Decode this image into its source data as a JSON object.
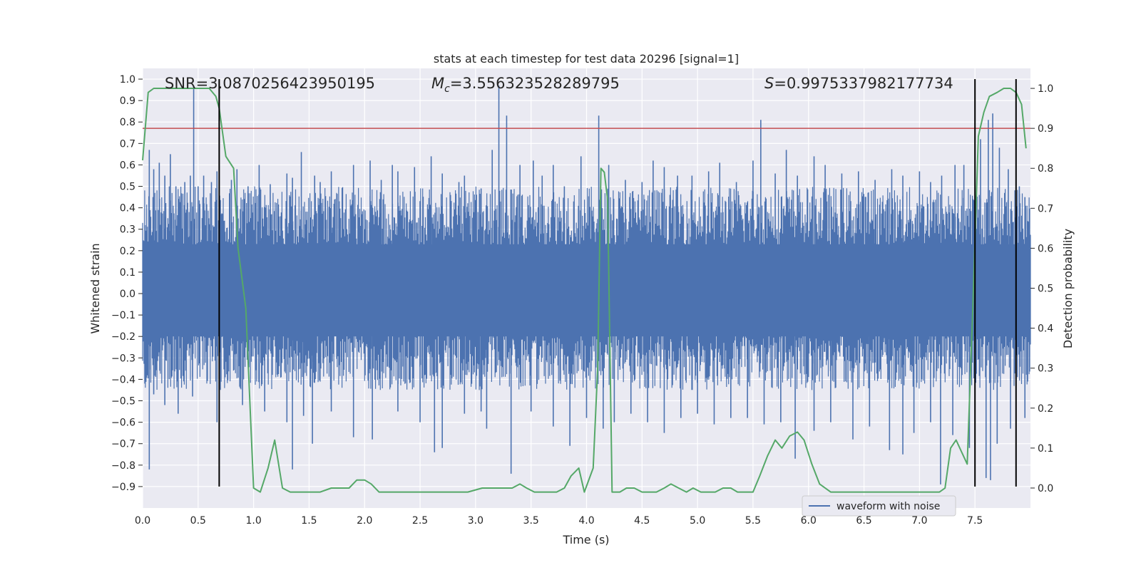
{
  "chart_data": {
    "type": "line",
    "title": "stats at each timestep for test data 20296 [signal=1]",
    "xlabel": "Time (s)",
    "ylabel": "Whitened strain",
    "ylabel_right": "Detection probability",
    "xlim": [
      0.0,
      8.0
    ],
    "ylim": [
      -1.0,
      1.05
    ],
    "ylim_right": [
      -0.05,
      1.05
    ],
    "x_ticks": [
      "0.0",
      "0.5",
      "1.0",
      "1.5",
      "2.0",
      "2.5",
      "3.0",
      "3.5",
      "4.0",
      "4.5",
      "5.0",
      "5.5",
      "6.0",
      "6.5",
      "7.0",
      "7.5"
    ],
    "x_tick_values": [
      0.0,
      0.5,
      1.0,
      1.5,
      2.0,
      2.5,
      3.0,
      3.5,
      4.0,
      4.5,
      5.0,
      5.5,
      6.0,
      6.5,
      7.0,
      7.5
    ],
    "y_ticks": [
      "1.0",
      "0.9",
      "0.8",
      "0.7",
      "0.6",
      "0.5",
      "0.4",
      "0.3",
      "0.2",
      "0.1",
      "0.0",
      "−0.1",
      "−0.2",
      "−0.3",
      "−0.4",
      "−0.5",
      "−0.6",
      "−0.7",
      "−0.8",
      "−0.9"
    ],
    "y_tick_values": [
      1.0,
      0.9,
      0.8,
      0.7,
      0.6,
      0.5,
      0.4,
      0.3,
      0.2,
      0.1,
      0.0,
      -0.1,
      -0.2,
      -0.3,
      -0.4,
      -0.5,
      -0.6,
      -0.7,
      -0.8,
      -0.9
    ],
    "y_right_ticks": [
      "1.0",
      "0.9",
      "0.8",
      "0.7",
      "0.6",
      "0.5",
      "0.4",
      "0.3",
      "0.2",
      "0.1",
      "0.0"
    ],
    "y_right_tick_values": [
      1.0,
      0.9,
      0.8,
      0.7,
      0.6,
      0.5,
      0.4,
      0.3,
      0.2,
      0.1,
      0.0
    ],
    "annotations": {
      "snr": "SNR=3.0870256423950195",
      "mc_symbol": "M",
      "mc_sub": "c",
      "mc_value": "=3.556323528289795",
      "s_symbol": "S",
      "s_value": "=0.9975337982177734"
    },
    "threshold": 0.9,
    "vertical_markers": [
      0.69,
      7.5,
      7.87
    ],
    "waveform": {
      "name": "waveform with noise",
      "envelope_upper": 0.45,
      "envelope_lower": -0.4,
      "spikes": [
        [
          0.06,
          0.67
        ],
        [
          0.1,
          0.58
        ],
        [
          0.15,
          0.61
        ],
        [
          0.2,
          0.55
        ],
        [
          0.25,
          0.65
        ],
        [
          0.3,
          0.5
        ],
        [
          0.38,
          0.52
        ],
        [
          0.43,
          0.55
        ],
        [
          0.46,
          0.97
        ],
        [
          0.5,
          0.5
        ],
        [
          0.55,
          0.55
        ],
        [
          0.62,
          0.52
        ],
        [
          0.67,
          0.57
        ],
        [
          0.8,
          0.53
        ],
        [
          0.85,
          0.58
        ],
        [
          0.95,
          0.5
        ],
        [
          1.05,
          0.6
        ],
        [
          1.15,
          0.51
        ],
        [
          1.3,
          0.56
        ],
        [
          1.35,
          0.54
        ],
        [
          1.43,
          0.66
        ],
        [
          1.55,
          0.55
        ],
        [
          1.6,
          0.52
        ],
        [
          1.7,
          0.57
        ],
        [
          1.8,
          0.48
        ],
        [
          1.9,
          0.6
        ],
        [
          2.05,
          0.62
        ],
        [
          2.15,
          0.53
        ],
        [
          2.25,
          0.6
        ],
        [
          2.3,
          0.57
        ],
        [
          2.45,
          0.59
        ],
        [
          2.6,
          0.64
        ],
        [
          2.7,
          0.56
        ],
        [
          2.85,
          0.52
        ],
        [
          2.9,
          0.55
        ],
        [
          3.05,
          0.49
        ],
        [
          3.15,
          0.67
        ],
        [
          3.21,
          0.97
        ],
        [
          3.28,
          0.83
        ],
        [
          3.4,
          0.6
        ],
        [
          3.52,
          0.62
        ],
        [
          3.6,
          0.55
        ],
        [
          3.7,
          0.6
        ],
        [
          3.8,
          0.5
        ],
        [
          3.95,
          0.64
        ],
        [
          4.11,
          0.83
        ],
        [
          4.2,
          0.6
        ],
        [
          4.35,
          0.53
        ],
        [
          4.5,
          0.52
        ],
        [
          4.6,
          0.62
        ],
        [
          4.7,
          0.59
        ],
        [
          4.82,
          0.55
        ],
        [
          4.95,
          0.55
        ],
        [
          5.1,
          0.57
        ],
        [
          5.2,
          0.61
        ],
        [
          5.35,
          0.52
        ],
        [
          5.5,
          0.62
        ],
        [
          5.57,
          0.81
        ],
        [
          5.7,
          0.56
        ],
        [
          5.8,
          0.67
        ],
        [
          5.9,
          0.55
        ],
        [
          6.05,
          0.64
        ],
        [
          6.15,
          0.6
        ],
        [
          6.3,
          0.56
        ],
        [
          6.45,
          0.57
        ],
        [
          6.6,
          0.53
        ],
        [
          6.75,
          0.58
        ],
        [
          6.85,
          0.55
        ],
        [
          7.0,
          0.57
        ],
        [
          7.1,
          0.52
        ],
        [
          7.2,
          0.55
        ],
        [
          7.32,
          0.6
        ],
        [
          7.4,
          0.6
        ],
        [
          7.55,
          0.72
        ],
        [
          7.62,
          0.81
        ],
        [
          7.66,
          0.84
        ],
        [
          7.72,
          0.68
        ],
        [
          7.8,
          0.58
        ],
        [
          7.9,
          0.5
        ],
        [
          7.95,
          0.45
        ],
        [
          0.06,
          -0.82
        ],
        [
          0.1,
          -0.47
        ],
        [
          0.2,
          -0.52
        ],
        [
          0.32,
          -0.56
        ],
        [
          0.45,
          -0.48
        ],
        [
          0.67,
          -0.6
        ],
        [
          0.9,
          -0.52
        ],
        [
          1.1,
          -0.55
        ],
        [
          1.3,
          -0.6
        ],
        [
          1.35,
          -0.82
        ],
        [
          1.45,
          -0.57
        ],
        [
          1.53,
          -0.7
        ],
        [
          1.7,
          -0.55
        ],
        [
          1.9,
          -0.67
        ],
        [
          2.07,
          -0.68
        ],
        [
          2.3,
          -0.55
        ],
        [
          2.5,
          -0.6
        ],
        [
          2.63,
          -0.74
        ],
        [
          2.7,
          -0.72
        ],
        [
          2.9,
          -0.56
        ],
        [
          3.05,
          -0.55
        ],
        [
          3.1,
          -0.63
        ],
        [
          3.32,
          -0.84
        ],
        [
          3.5,
          -0.55
        ],
        [
          3.7,
          -0.62
        ],
        [
          3.85,
          -0.71
        ],
        [
          4.0,
          -0.58
        ],
        [
          4.15,
          -0.63
        ],
        [
          4.25,
          -0.6
        ],
        [
          4.4,
          -0.56
        ],
        [
          4.55,
          -0.6
        ],
        [
          4.7,
          -0.65
        ],
        [
          4.85,
          -0.58
        ],
        [
          5.0,
          -0.56
        ],
        [
          5.15,
          -0.61
        ],
        [
          5.3,
          -0.58
        ],
        [
          5.45,
          -0.58
        ],
        [
          5.6,
          -0.61
        ],
        [
          5.75,
          -0.6
        ],
        [
          5.88,
          -0.77
        ],
        [
          6.05,
          -0.64
        ],
        [
          6.2,
          -0.6
        ],
        [
          6.4,
          -0.68
        ],
        [
          6.55,
          -0.62
        ],
        [
          6.73,
          -0.73
        ],
        [
          6.85,
          -0.75
        ],
        [
          6.95,
          -0.65
        ],
        [
          7.1,
          -0.6
        ],
        [
          7.19,
          -0.89
        ],
        [
          7.3,
          -0.66
        ],
        [
          7.45,
          -0.72
        ],
        [
          7.6,
          -0.86
        ],
        [
          7.64,
          -0.87
        ],
        [
          7.7,
          -0.7
        ],
        [
          7.82,
          -0.63
        ],
        [
          7.95,
          -0.58
        ]
      ]
    },
    "detection_probability": {
      "x": [
        0.0,
        0.05,
        0.1,
        0.2,
        0.3,
        0.4,
        0.5,
        0.6,
        0.66,
        0.69,
        0.75,
        0.82,
        0.86,
        0.93,
        1.0,
        1.06,
        1.13,
        1.19,
        1.26,
        1.33,
        1.4,
        1.46,
        1.53,
        1.6,
        1.7,
        1.8,
        1.86,
        1.93,
        2.0,
        2.06,
        2.13,
        2.26,
        2.4,
        2.53,
        2.66,
        2.8,
        2.93,
        3.06,
        3.2,
        3.26,
        3.33,
        3.4,
        3.46,
        3.53,
        3.6,
        3.66,
        3.73,
        3.8,
        3.86,
        3.93,
        3.98,
        4.06,
        4.1,
        4.13,
        4.16,
        4.19,
        4.23,
        4.26,
        4.3,
        4.36,
        4.43,
        4.5,
        4.56,
        4.63,
        4.7,
        4.76,
        4.83,
        4.9,
        4.96,
        5.03,
        5.1,
        5.16,
        5.23,
        5.3,
        5.36,
        5.43,
        5.5,
        5.56,
        5.63,
        5.7,
        5.76,
        5.83,
        5.9,
        5.96,
        6.03,
        6.1,
        6.2,
        6.4,
        6.6,
        6.8,
        7.0,
        7.18,
        7.23,
        7.28,
        7.33,
        7.38,
        7.43,
        7.48,
        7.53,
        7.58,
        7.63,
        7.7,
        7.76,
        7.82,
        7.87,
        7.92,
        7.96
      ],
      "y": [
        0.82,
        0.99,
        1.0,
        1.0,
        1.0,
        1.0,
        1.0,
        1.0,
        0.98,
        0.95,
        0.83,
        0.8,
        0.6,
        0.45,
        0.0,
        -0.01,
        0.05,
        0.12,
        0.0,
        -0.01,
        -0.01,
        -0.01,
        -0.01,
        -0.01,
        0.0,
        0.0,
        0.0,
        0.02,
        0.02,
        0.01,
        -0.01,
        -0.01,
        -0.01,
        -0.01,
        -0.01,
        -0.01,
        -0.01,
        0.0,
        0.0,
        0.0,
        0.0,
        0.01,
        0.0,
        -0.01,
        -0.01,
        -0.01,
        -0.01,
        0.0,
        0.03,
        0.05,
        -0.01,
        0.05,
        0.3,
        0.8,
        0.79,
        0.72,
        -0.01,
        -0.01,
        -0.01,
        0.0,
        0.0,
        -0.01,
        -0.01,
        -0.01,
        0.0,
        0.01,
        0.0,
        -0.01,
        0.0,
        -0.01,
        -0.01,
        -0.01,
        0.0,
        0.0,
        -0.01,
        -0.01,
        -0.01,
        0.03,
        0.08,
        0.12,
        0.1,
        0.13,
        0.14,
        0.12,
        0.06,
        0.01,
        -0.01,
        -0.01,
        -0.01,
        -0.01,
        -0.01,
        -0.01,
        0.0,
        0.1,
        0.12,
        0.09,
        0.06,
        0.45,
        0.88,
        0.94,
        0.98,
        0.99,
        1.0,
        1.0,
        0.99,
        0.96,
        0.85
      ]
    }
  }
}
